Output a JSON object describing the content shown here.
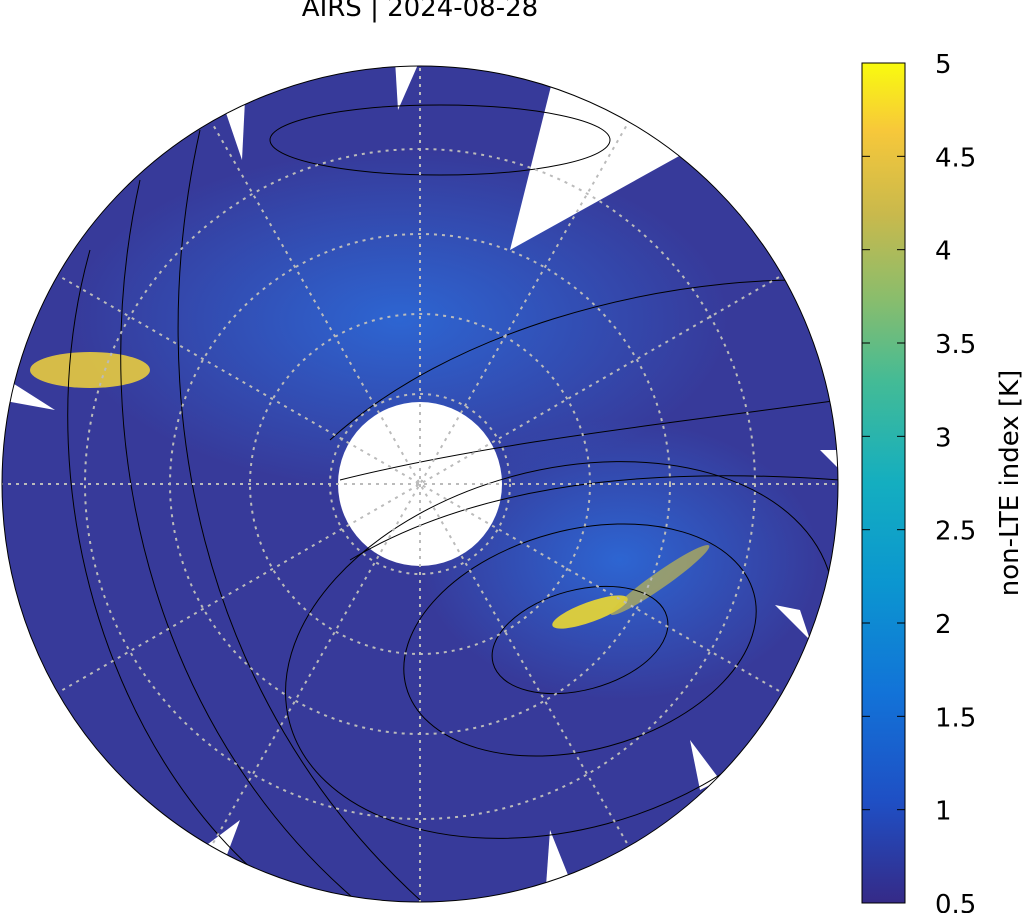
{
  "title": "AIRS | 2024-08-28",
  "colorbar": {
    "label": "non-LTE index [K]",
    "lim": [
      0.5,
      5
    ],
    "ticks": [
      0.5,
      1,
      1.5,
      2,
      2.5,
      3,
      3.5,
      4,
      4.5,
      5
    ]
  }
}
